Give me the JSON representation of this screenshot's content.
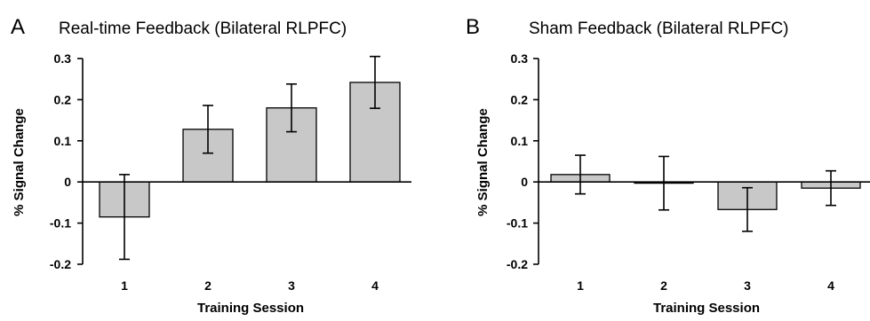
{
  "chart_data": [
    {
      "panel": "A",
      "type": "bar",
      "title": "Real-time Feedback (Bilateral RLPFC)",
      "xlabel": "Training Session",
      "ylabel": "% Signal Change",
      "categories": [
        "1",
        "2",
        "3",
        "4"
      ],
      "values": [
        -0.085,
        0.128,
        0.18,
        0.242
      ],
      "error": [
        0.103,
        0.058,
        0.058,
        0.063
      ],
      "ylim": [
        -0.2,
        0.3
      ],
      "yticks": [
        "0.3",
        "0.2",
        "0.1",
        "0",
        "-0.1",
        "-0.2"
      ],
      "ytick_values": [
        0.3,
        0.2,
        0.1,
        0,
        -0.1,
        -0.2
      ],
      "grid": false,
      "bar_color": "#c8c8c8"
    },
    {
      "panel": "B",
      "type": "bar",
      "title": "Sham Feedback (Bilateral RLPFC)",
      "xlabel": "Training Session",
      "ylabel": "% Signal Change",
      "categories": [
        "1",
        "2",
        "3",
        "4"
      ],
      "values": [
        0.018,
        -0.003,
        -0.067,
        -0.015
      ],
      "error": [
        0.047,
        0.065,
        0.053,
        0.042
      ],
      "ylim": [
        -0.2,
        0.3
      ],
      "yticks": [
        "0.3",
        "0.2",
        "0.1",
        "0",
        "-0.1",
        "-0.2"
      ],
      "ytick_values": [
        0.3,
        0.2,
        0.1,
        0,
        -0.1,
        -0.2
      ],
      "grid": false,
      "bar_color": "#c8c8c8"
    }
  ]
}
